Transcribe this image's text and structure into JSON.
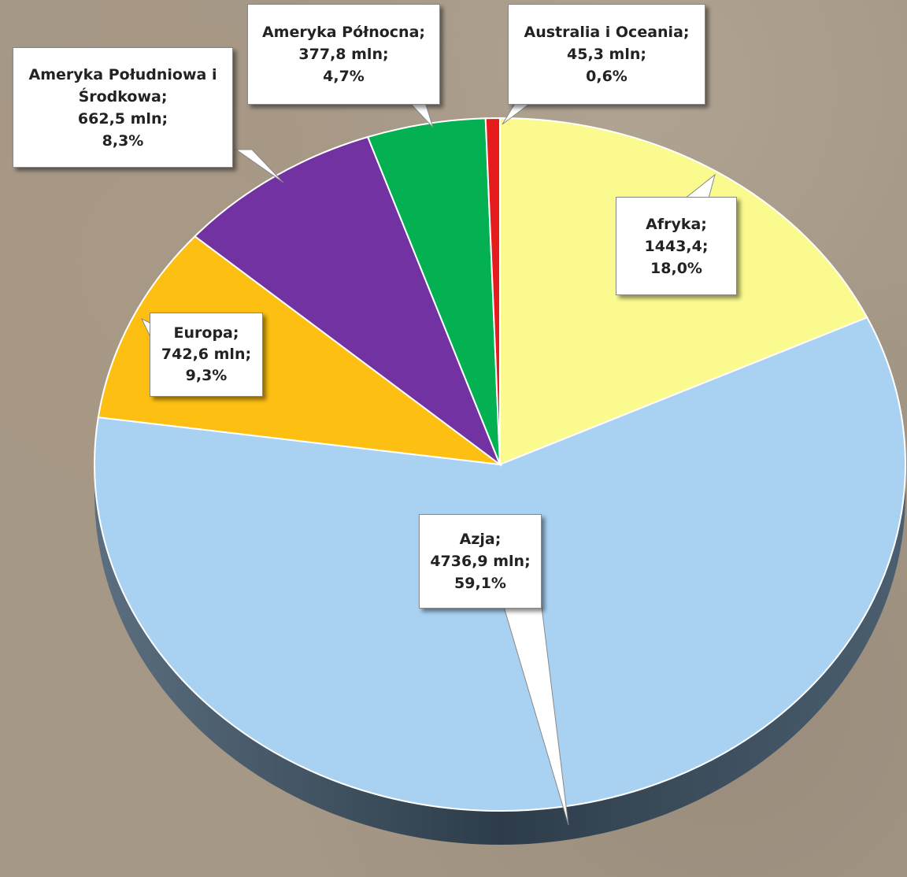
{
  "chart_data": {
    "type": "pie",
    "categories": [
      "Afryka;",
      "Azja;",
      "Europa;",
      "Ameryka Południowa i Środkowa;",
      "Ameryka Północna;",
      "Australia i Oceania;"
    ],
    "values": [
      1443.4,
      4736.9,
      742.6,
      662.5,
      377.8,
      45.3
    ],
    "value_labels": [
      "1443,4;",
      "4736,9 mln;",
      "742,6 mln;",
      "662,5 mln;",
      "377,8 mln;",
      "45,3 mln;"
    ],
    "percentages": [
      18.0,
      59.1,
      9.3,
      8.3,
      4.7,
      0.6
    ],
    "percentage_labels": [
      "18,0%",
      "59,1%",
      "9,3%",
      "8,3%",
      "4,7%",
      "0,6%"
    ],
    "colors": [
      "#fafa8e",
      "#a9d1f2",
      "#fdc012",
      "#7232a2",
      "#03b052",
      "#e61c1c"
    ]
  }
}
